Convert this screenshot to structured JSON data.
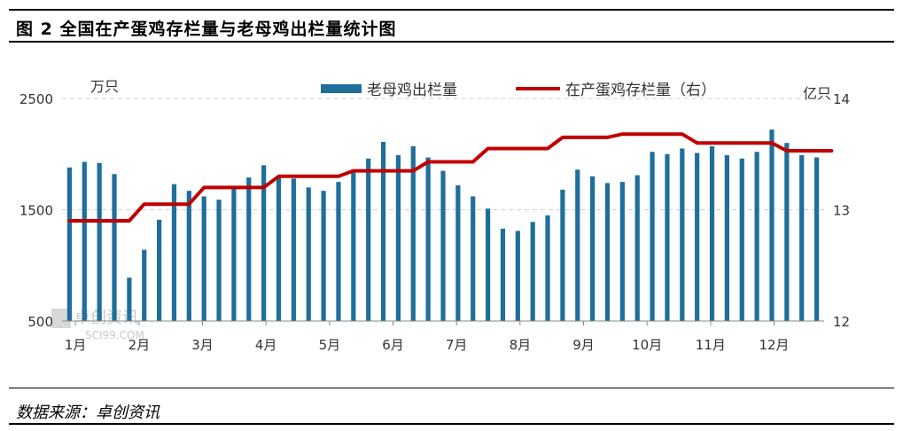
{
  "figure": {
    "title": "图 2 全国在产蛋鸡存栏量与老母鸡出栏量统计图",
    "source": "数据来源：卓创资讯",
    "watermark": "卓创资讯",
    "watermark_sub": "SCI99.COM"
  },
  "chart_data": {
    "type": "bar+line",
    "legend_position": "top",
    "grid": "horizontal dashed",
    "left_axis": {
      "unit": "万只",
      "ticks": [
        2500,
        1500,
        500
      ],
      "ylim": [
        500,
        2500
      ]
    },
    "right_axis": {
      "unit": "亿只",
      "ticks": [
        14,
        13,
        12
      ],
      "ylim": [
        12,
        14
      ]
    },
    "months": [
      "1月",
      "2月",
      "3月",
      "4月",
      "5月",
      "6月",
      "7月",
      "8月",
      "9月",
      "10月",
      "11月",
      "12月"
    ],
    "series": [
      {
        "name": "老母鸡出栏量",
        "type": "bar",
        "axis": "left",
        "color": "#1f6e9b",
        "values": [
          1880,
          1930,
          1920,
          1820,
          890,
          1140,
          1410,
          1730,
          1670,
          1620,
          1590,
          1700,
          1790,
          1900,
          1800,
          1780,
          1700,
          1670,
          1750,
          1860,
          1960,
          2110,
          1990,
          2070,
          1970,
          1850,
          1720,
          1620,
          1510,
          1330,
          1310,
          1390,
          1450,
          1680,
          1860,
          1800,
          1740,
          1750,
          1810,
          2020,
          2000,
          2050,
          2010,
          2070,
          1990,
          1960,
          2020,
          2220,
          2100,
          1990,
          1970
        ]
      },
      {
        "name": "在产蛋鸡存栏量（右）",
        "type": "step-line",
        "axis": "right",
        "color": "#c00000",
        "weekly_values": [
          12.9,
          12.9,
          12.9,
          12.9,
          12.9,
          13.05,
          13.05,
          13.05,
          13.05,
          13.2,
          13.2,
          13.2,
          13.2,
          13.2,
          13.3,
          13.3,
          13.3,
          13.3,
          13.3,
          13.35,
          13.35,
          13.35,
          13.35,
          13.35,
          13.43,
          13.43,
          13.43,
          13.43,
          13.55,
          13.55,
          13.55,
          13.55,
          13.55,
          13.65,
          13.65,
          13.65,
          13.65,
          13.68,
          13.68,
          13.68,
          13.68,
          13.68,
          13.6,
          13.6,
          13.6,
          13.6,
          13.6,
          13.6,
          13.53,
          13.53,
          13.53,
          13.53
        ]
      }
    ]
  }
}
